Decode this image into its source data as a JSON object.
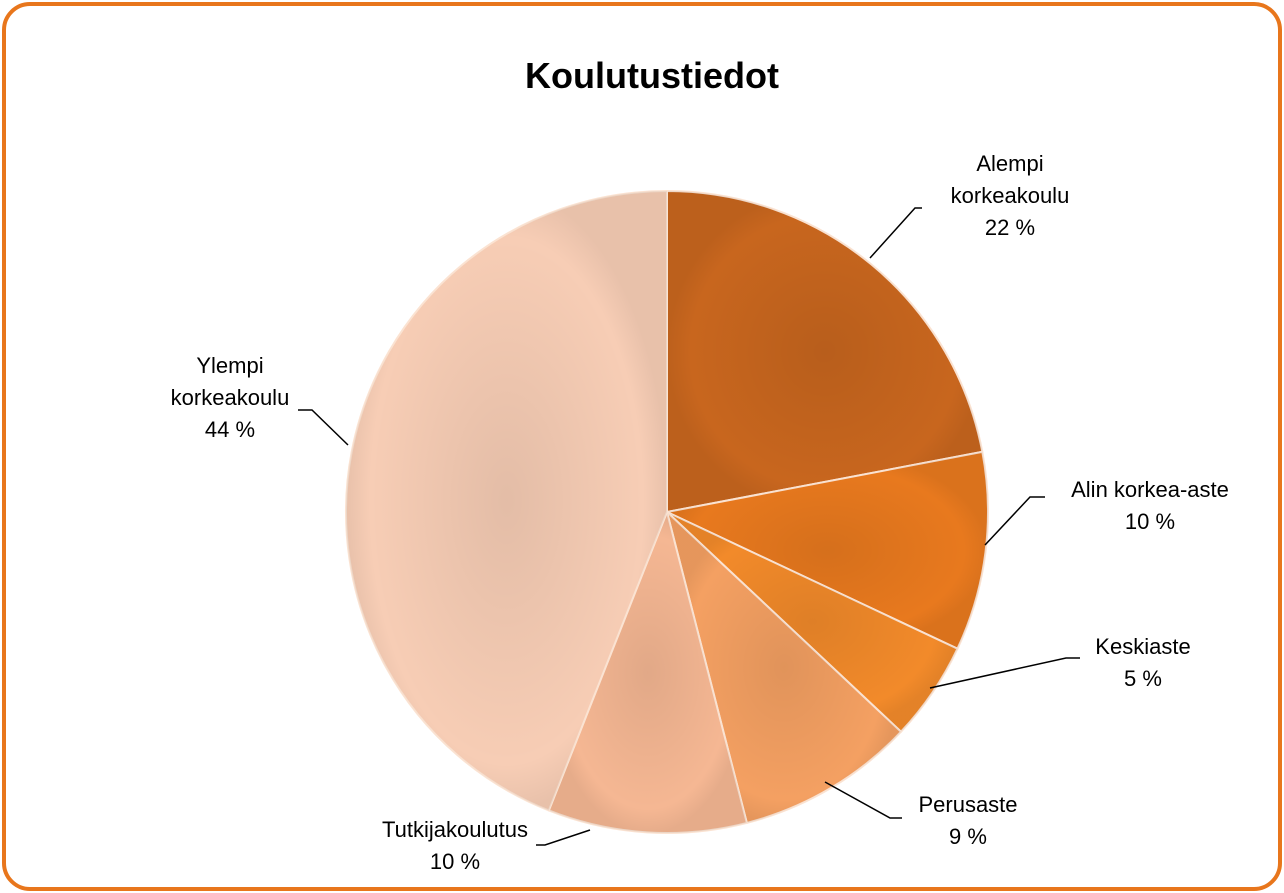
{
  "chart_data": {
    "type": "pie",
    "title": "Koulutustiedot",
    "categories": [
      "Alempi korkeakoulu",
      "Alin korkea-aste",
      "Keskiaste",
      "Perusaste",
      "Tutkijakoulutus",
      "Ylempi korkeakoulu"
    ],
    "values": [
      22,
      10,
      5,
      9,
      10,
      44
    ],
    "value_labels": [
      "22 %",
      "10 %",
      "5 %",
      "9 %",
      "10 %",
      "44 %"
    ],
    "colors": [
      "#c8661e",
      "#e8791e",
      "#f28a2a",
      "#f4a062",
      "#f5b793",
      "#f7cdb5"
    ]
  }
}
